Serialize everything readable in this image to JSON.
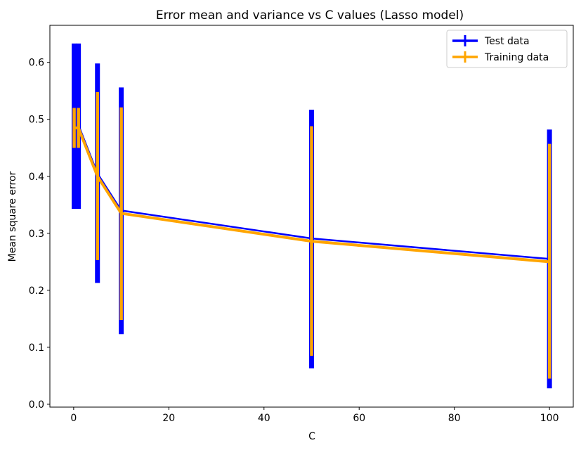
{
  "chart_data": {
    "type": "line",
    "title": "Error mean and variance vs C values (Lasso model)",
    "xlabel": "C",
    "ylabel": "Mean square error",
    "xlim": [
      -5,
      105
    ],
    "ylim": [
      -0.005,
      0.665
    ],
    "xticks": [
      0,
      20,
      40,
      60,
      80,
      100
    ],
    "xtick_labels": [
      "0",
      "20",
      "40",
      "60",
      "80",
      "100"
    ],
    "yticks": [
      0.0,
      0.1,
      0.2,
      0.3,
      0.4,
      0.5,
      0.6
    ],
    "ytick_labels": [
      "0.0",
      "0.1",
      "0.2",
      "0.3",
      "0.4",
      "0.5",
      "0.6"
    ],
    "grid": false,
    "legend": "top-right",
    "x": [
      0.1,
      1,
      5,
      10,
      50,
      100
    ],
    "series": [
      {
        "name": "Test data",
        "color": "#0000ff",
        "values": [
          0.49,
          0.49,
          0.405,
          0.34,
          0.291,
          0.255
        ],
        "err_low": [
          0.343,
          0.343,
          0.213,
          0.123,
          0.063,
          0.028
        ],
        "err_high": [
          0.633,
          0.633,
          0.598,
          0.556,
          0.517,
          0.482
        ]
      },
      {
        "name": "Training data",
        "color": "#ffa500",
        "values": [
          0.485,
          0.485,
          0.4,
          0.335,
          0.286,
          0.25
        ],
        "err_low": [
          0.45,
          0.45,
          0.253,
          0.148,
          0.085,
          0.045
        ],
        "err_high": [
          0.52,
          0.52,
          0.548,
          0.521,
          0.488,
          0.457
        ]
      }
    ]
  }
}
